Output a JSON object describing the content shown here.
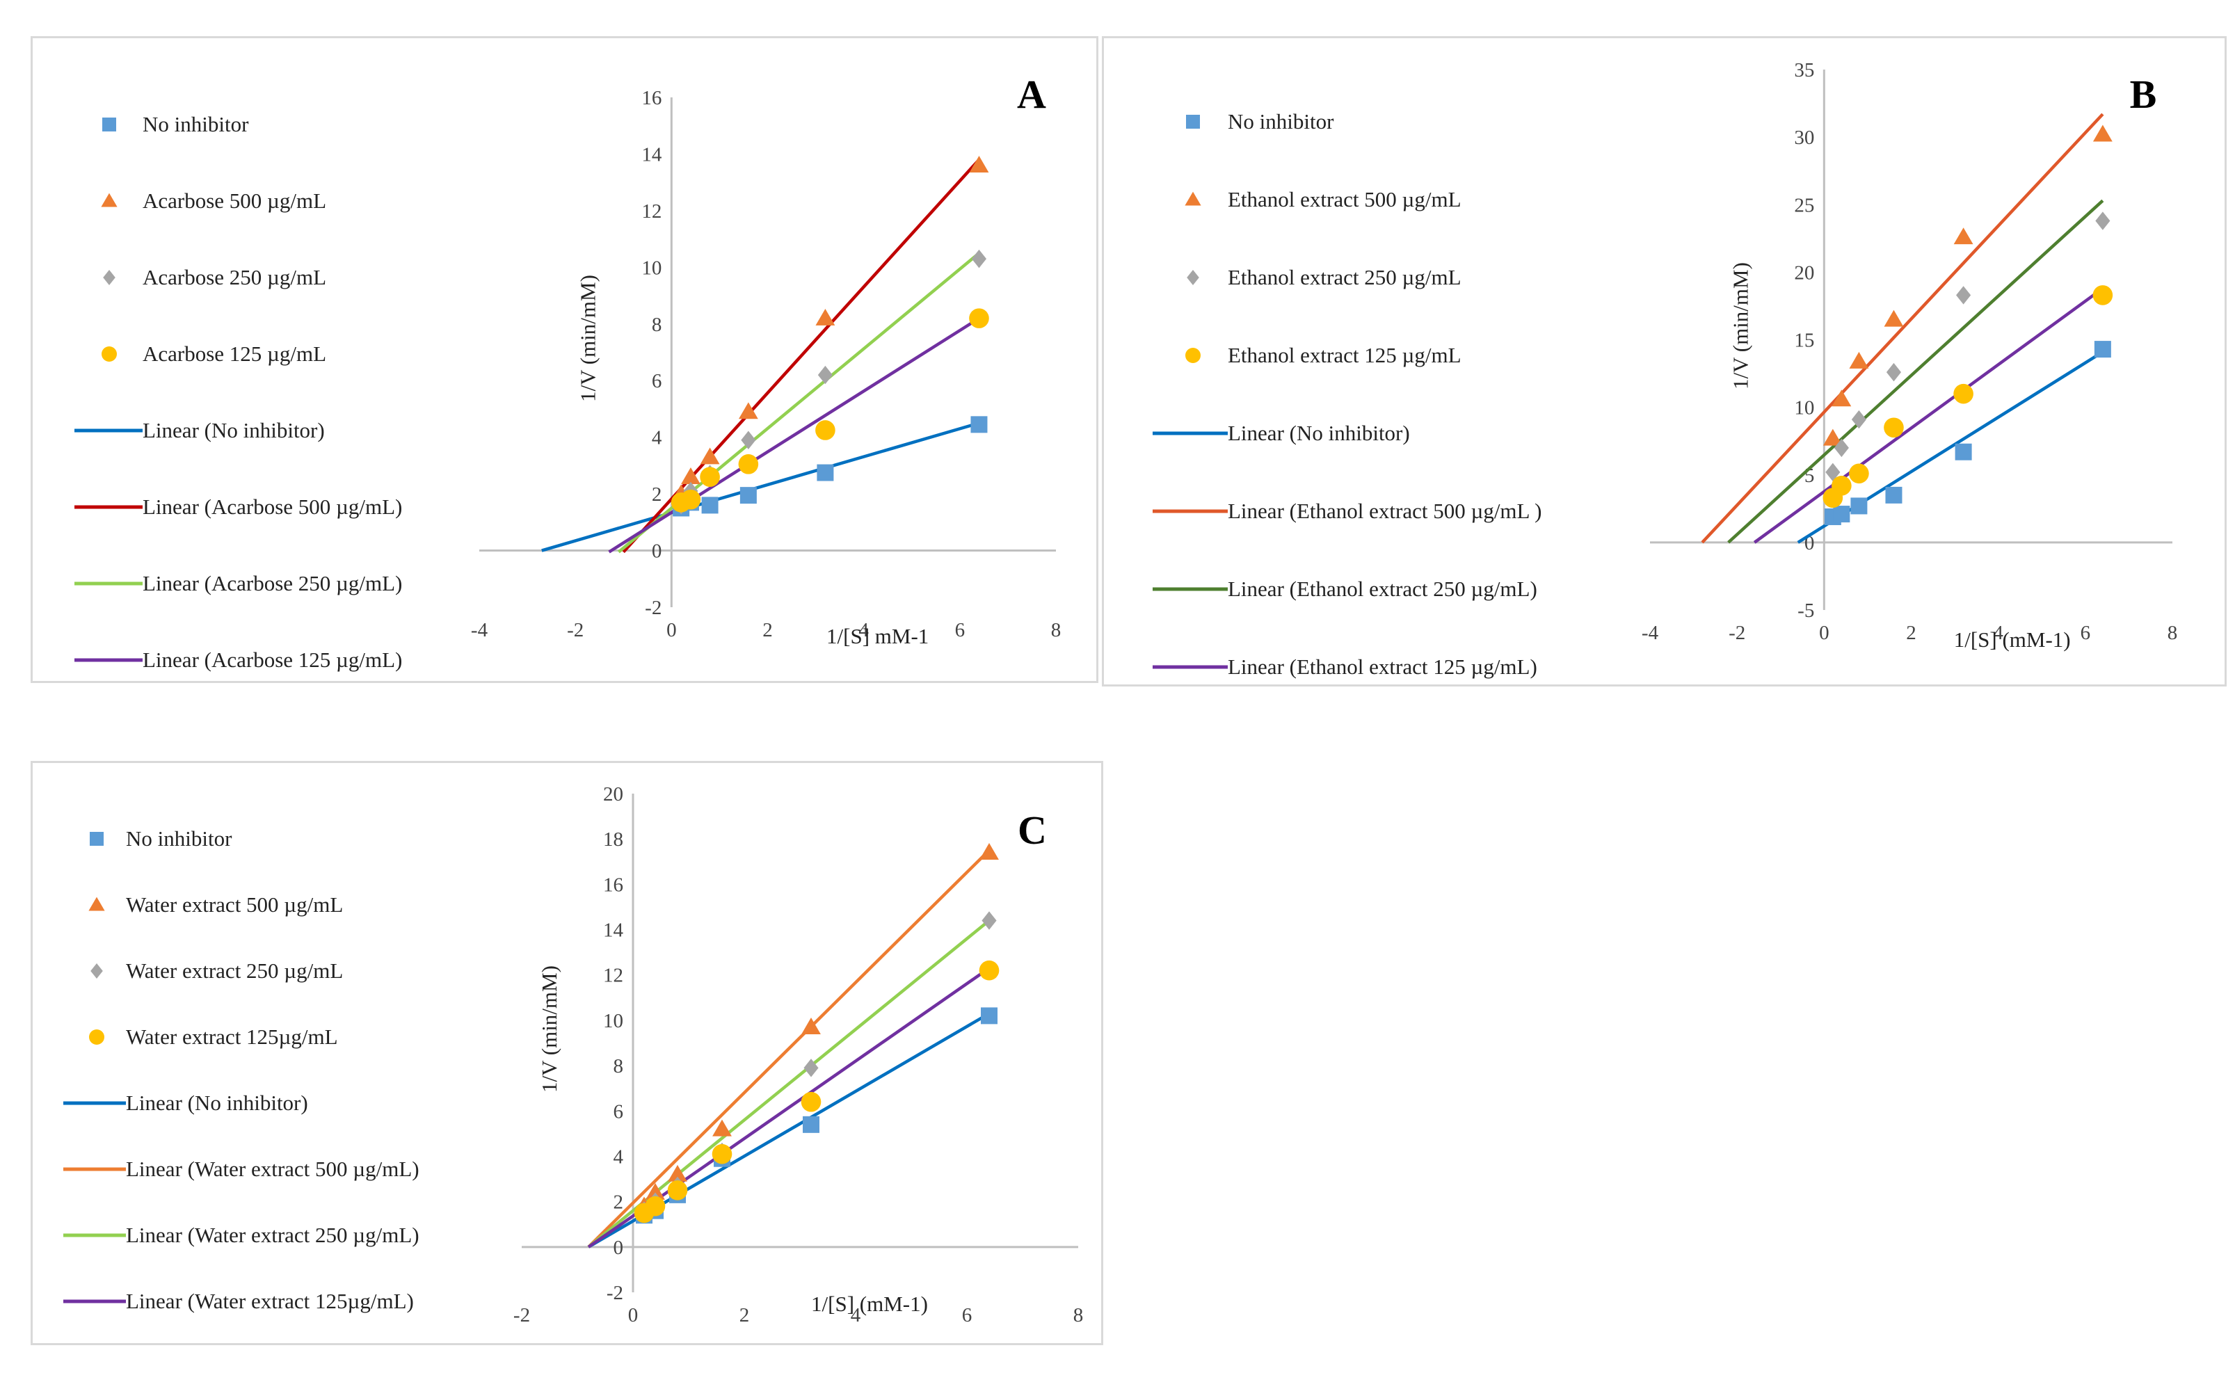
{
  "colors": {
    "no_inhibitor_marker": "#5b9bd5",
    "level500_marker": "#ed7d31",
    "level250_marker": "#a5a5a5",
    "level125_marker": "#ffc000"
  },
  "chart_data": [
    {
      "type": "scatter",
      "panel_label": "A",
      "title": "",
      "xlabel": "1/[S] mM-1",
      "ylabel": "1/V (min/mM)",
      "xlim": [
        -4,
        8
      ],
      "ylim": [
        -2,
        16
      ],
      "xticks": [
        -4,
        -2,
        0,
        2,
        4,
        6,
        8
      ],
      "yticks": [
        -2,
        0,
        2,
        4,
        6,
        8,
        10,
        12,
        14,
        16
      ],
      "legend_position": "left",
      "series": [
        {
          "name": "No inhibitor",
          "marker": "square",
          "color": "#5b9bd5",
          "x": [
            0.2,
            0.4,
            0.8,
            1.6,
            3.2,
            6.4
          ],
          "y": [
            1.5,
            1.7,
            1.6,
            1.95,
            2.75,
            4.45
          ]
        },
        {
          "name": "Acarbose 500 µg/mL",
          "marker": "triangle",
          "color": "#ed7d31",
          "x": [
            0.2,
            0.4,
            0.8,
            1.6,
            3.2,
            6.4
          ],
          "y": [
            2.0,
            2.6,
            3.3,
            4.9,
            8.2,
            13.6
          ]
        },
        {
          "name": "Acarbose 250 µg/mL",
          "marker": "diamond",
          "color": "#a5a5a5",
          "x": [
            0.2,
            0.4,
            0.8,
            1.6,
            3.2,
            6.4
          ],
          "y": [
            1.6,
            2.1,
            2.7,
            3.9,
            6.2,
            10.3
          ]
        },
        {
          "name": "Acarbose 125 µg/mL",
          "marker": "circle",
          "color": "#ffc000",
          "x": [
            0.2,
            0.4,
            0.8,
            1.6,
            3.2,
            6.4
          ],
          "y": [
            1.7,
            1.8,
            2.6,
            3.05,
            4.25,
            8.2
          ]
        }
      ],
      "trendlines": [
        {
          "name": "Linear (No inhibitor)",
          "color": "#0070c0",
          "x": [
            -2.7,
            6.4
          ],
          "y": [
            0.0,
            4.5
          ]
        },
        {
          "name": "Linear (Acarbose 500 µg/mL)",
          "color": "#c00000",
          "x": [
            -1.0,
            6.4
          ],
          "y": [
            -0.05,
            13.8
          ]
        },
        {
          "name": "Linear (Acarbose 250 µg/mL)",
          "color": "#92d050",
          "x": [
            -1.1,
            6.4
          ],
          "y": [
            -0.05,
            10.5
          ]
        },
        {
          "name": "Linear (Acarbose 125 µg/mL)",
          "color": "#7030a0",
          "x": [
            -1.3,
            6.4
          ],
          "y": [
            -0.05,
            8.2
          ]
        }
      ]
    },
    {
      "type": "scatter",
      "panel_label": "B",
      "title": "",
      "xlabel": "1/[S] (mM-1)",
      "ylabel": "1/V (min/mM)",
      "xlim": [
        -4,
        8
      ],
      "ylim": [
        -5,
        35
      ],
      "xticks": [
        -4,
        -2,
        0,
        2,
        4,
        6,
        8
      ],
      "yticks": [
        -5,
        0,
        5,
        10,
        15,
        20,
        25,
        30,
        35
      ],
      "legend_position": "left",
      "series": [
        {
          "name": "No inhibitor",
          "marker": "square",
          "color": "#5b9bd5",
          "x": [
            0.2,
            0.4,
            0.8,
            1.6,
            3.2,
            6.4
          ],
          "y": [
            1.9,
            2.1,
            2.7,
            3.5,
            6.7,
            14.3
          ]
        },
        {
          "name": "Ethanol extract 500 µg/mL",
          "marker": "triangle",
          "color": "#ed7d31",
          "x": [
            0.2,
            0.4,
            0.8,
            1.6,
            3.2,
            6.4
          ],
          "y": [
            7.7,
            10.6,
            13.4,
            16.5,
            22.6,
            30.2
          ]
        },
        {
          "name": "Ethanol extract 250 µg/mL",
          "marker": "diamond",
          "color": "#a5a5a5",
          "x": [
            0.2,
            0.4,
            0.8,
            1.6,
            3.2,
            6.4
          ],
          "y": [
            5.2,
            7.0,
            9.1,
            12.6,
            18.3,
            23.8
          ]
        },
        {
          "name": "Ethanol extract 125 µg/mL",
          "marker": "circle",
          "color": "#ffc000",
          "x": [
            0.2,
            0.4,
            0.8,
            1.6,
            3.2,
            6.4
          ],
          "y": [
            3.3,
            4.2,
            5.1,
            8.5,
            11.0,
            18.3
          ]
        }
      ],
      "trendlines": [
        {
          "name": "Linear (No inhibitor)",
          "color": "#0070c0",
          "x": [
            -0.6,
            6.4
          ],
          "y": [
            0.0,
            14.1
          ]
        },
        {
          "name": "Linear (Ethanol extract 500 µg/mL )",
          "color": "#e0582a",
          "x": [
            -2.8,
            6.4
          ],
          "y": [
            0.0,
            31.7
          ]
        },
        {
          "name": "Linear (Ethanol extract 250 µg/mL)",
          "color": "#4e7f2f",
          "x": [
            -2.2,
            6.4
          ],
          "y": [
            0.0,
            25.3
          ]
        },
        {
          "name": "Linear (Ethanol extract 125 µg/mL)",
          "color": "#7030a0",
          "x": [
            -1.6,
            6.4
          ],
          "y": [
            0.0,
            18.8
          ]
        }
      ]
    },
    {
      "type": "scatter",
      "panel_label": "C",
      "title": "",
      "xlabel": "1/[S] (mM-1)",
      "ylabel": "1/V (min/mM)",
      "xlim": [
        -2,
        8
      ],
      "ylim": [
        -2,
        20
      ],
      "xticks": [
        -2,
        0,
        2,
        4,
        6,
        8
      ],
      "yticks": [
        -2,
        0,
        2,
        4,
        6,
        8,
        10,
        12,
        14,
        16,
        18,
        20
      ],
      "legend_position": "left",
      "series": [
        {
          "name": "No inhibitor",
          "marker": "square",
          "color": "#5b9bd5",
          "x": [
            0.2,
            0.4,
            0.8,
            1.6,
            3.2,
            6.4
          ],
          "y": [
            1.4,
            1.6,
            2.3,
            3.9,
            5.4,
            10.2
          ]
        },
        {
          "name": "Water extract 500 µg/mL",
          "marker": "triangle",
          "color": "#ed7d31",
          "x": [
            0.2,
            0.4,
            0.8,
            1.6,
            3.2,
            6.4
          ],
          "y": [
            1.8,
            2.4,
            3.2,
            5.2,
            9.7,
            17.4
          ]
        },
        {
          "name": "Water extract 250 µg/mL",
          "marker": "diamond",
          "color": "#a5a5a5",
          "x": [
            0.2,
            0.4,
            0.8,
            1.6,
            3.2,
            6.4
          ],
          "y": [
            1.6,
            2.0,
            2.7,
            4.2,
            7.9,
            14.4
          ]
        },
        {
          "name": "Water extract 125µg/mL",
          "marker": "circle",
          "color": "#ffc000",
          "x": [
            0.2,
            0.4,
            0.8,
            1.6,
            3.2,
            6.4
          ],
          "y": [
            1.5,
            1.8,
            2.5,
            4.1,
            6.4,
            12.2
          ]
        }
      ],
      "trendlines": [
        {
          "name": "Linear (No inhibitor)",
          "color": "#0070c0",
          "x": [
            -0.8,
            6.4
          ],
          "y": [
            0.0,
            10.3
          ]
        },
        {
          "name": "Linear (Water extract 500 µg/mL)",
          "color": "#ed7d31",
          "x": [
            -0.8,
            6.4
          ],
          "y": [
            0.0,
            17.5
          ]
        },
        {
          "name": "Linear (Water extract 250 µg/mL)",
          "color": "#92d050",
          "x": [
            -0.8,
            6.4
          ],
          "y": [
            0.0,
            14.4
          ]
        },
        {
          "name": "Linear (Water extract 125µg/mL)",
          "color": "#7030a0",
          "x": [
            -0.8,
            6.4
          ],
          "y": [
            0.0,
            12.3
          ]
        }
      ]
    }
  ]
}
